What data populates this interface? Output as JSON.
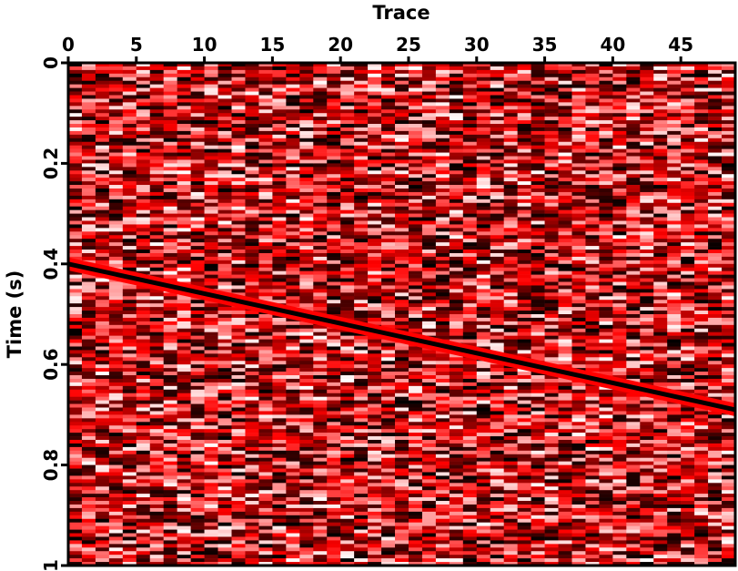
{
  "chart_data": {
    "type": "heatmap",
    "title": "",
    "xlabel": "Trace",
    "ylabel": "Time (s)",
    "x_axis_position": "top",
    "xlim": [
      0,
      49
    ],
    "ylim": [
      1,
      0
    ],
    "x_ticks": [
      0,
      5,
      10,
      15,
      20,
      25,
      30,
      35,
      40,
      45
    ],
    "x_tick_labels": [
      "0",
      "5",
      "10",
      "15",
      "20",
      "25",
      "30",
      "35",
      "40",
      "45"
    ],
    "y_ticks": [
      0,
      0.2,
      0.4,
      0.6,
      0.8,
      1
    ],
    "y_tick_labels": [
      "0",
      "0.2",
      "0.4",
      "0.6",
      "0.8",
      "1"
    ],
    "grid": false,
    "legend": "none",
    "traces": 49,
    "colormap": [
      "#ffffff",
      "#ff0000",
      "#000000"
    ],
    "event": {
      "description": "linear event",
      "x": [
        0,
        49
      ],
      "y": [
        0.4,
        0.69
      ]
    }
  }
}
